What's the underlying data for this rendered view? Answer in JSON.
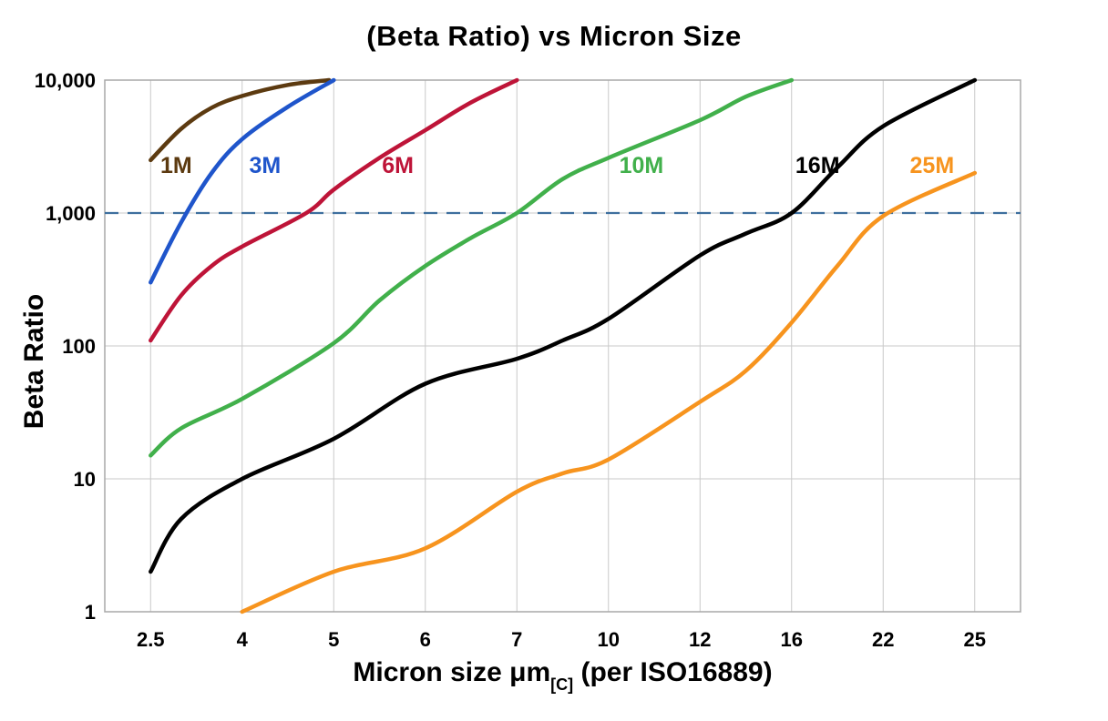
{
  "chart_data": {
    "type": "line",
    "title": "(Beta Ratio) vs Micron Size",
    "xlabel": "Micron size μm[C] (per ISO16889)",
    "xlabel_prefix": "Micron size μm",
    "xlabel_subscript": "[C]",
    "xlabel_suffix": " (per ISO16889)",
    "ylabel": "Beta Ratio",
    "x_scale": "category-linear",
    "y_scale": "log",
    "ylim": [
      1,
      10000
    ],
    "categories": [
      2.5,
      4,
      5,
      6,
      7,
      10,
      12,
      16,
      22,
      25
    ],
    "x_tick_labels": [
      "2.5",
      "4",
      "5",
      "6",
      "7",
      "10",
      "12",
      "16",
      "22",
      "25"
    ],
    "y_ticks": [
      1,
      10,
      100,
      1000,
      10000
    ],
    "y_tick_labels": [
      "1",
      "10",
      "100",
      "1,000",
      "10,000"
    ],
    "grid": true,
    "grid_color": "#c9c9c9",
    "border_color": "#a8a8a8",
    "reference_line": {
      "y": 1000,
      "style": "dashed",
      "color": "#3e6f9e"
    },
    "series": [
      {
        "name": "1M",
        "color": "#5c3a10",
        "label": {
          "x": 2.92,
          "y": 2000
        },
        "points": [
          [
            2.5,
            2500
          ],
          [
            3,
            4300
          ],
          [
            3.5,
            6200
          ],
          [
            4,
            7600
          ],
          [
            4.5,
            9200
          ],
          [
            4.95,
            10000
          ]
        ]
      },
      {
        "name": "3M",
        "color": "#1f55cb",
        "label": {
          "x": 4.25,
          "y": 2000
        },
        "points": [
          [
            2.5,
            300
          ],
          [
            3,
            850
          ],
          [
            3.5,
            2000
          ],
          [
            4,
            3600
          ],
          [
            4.5,
            6300
          ],
          [
            5,
            10000
          ]
        ]
      },
      {
        "name": "6M",
        "color": "#be1438",
        "label": {
          "x": 5.7,
          "y": 2000
        },
        "points": [
          [
            2.5,
            110
          ],
          [
            3,
            240
          ],
          [
            3.5,
            400
          ],
          [
            4,
            560
          ],
          [
            4.7,
            1000
          ],
          [
            5,
            1500
          ],
          [
            5.5,
            2600
          ],
          [
            6,
            4200
          ],
          [
            6.5,
            6800
          ],
          [
            7,
            10000
          ]
        ]
      },
      {
        "name": "10M",
        "color": "#41b04b",
        "label": {
          "x": 10.72,
          "y": 2000
        },
        "points": [
          [
            2.5,
            15
          ],
          [
            3,
            24
          ],
          [
            4,
            40
          ],
          [
            5,
            105
          ],
          [
            5.5,
            220
          ],
          [
            6,
            400
          ],
          [
            6.5,
            650
          ],
          [
            7,
            1000
          ],
          [
            8.5,
            1800
          ],
          [
            10,
            2600
          ],
          [
            12,
            5000
          ],
          [
            14,
            7500
          ],
          [
            16,
            10000
          ]
        ]
      },
      {
        "name": "16M",
        "color": "#000000",
        "label": {
          "x": 17.7,
          "y": 2000
        },
        "points": [
          [
            2.5,
            2
          ],
          [
            3,
            5
          ],
          [
            4,
            10
          ],
          [
            5,
            20
          ],
          [
            6,
            52
          ],
          [
            7,
            80
          ],
          [
            8.5,
            110
          ],
          [
            10,
            160
          ],
          [
            12,
            480
          ],
          [
            14,
            700
          ],
          [
            16,
            1000
          ],
          [
            19,
            2200
          ],
          [
            22,
            4500
          ],
          [
            25,
            10000
          ]
        ]
      },
      {
        "name": "25M",
        "color": "#f7941e",
        "label": {
          "x": 23.6,
          "y": 2000
        },
        "points": [
          [
            4,
            1
          ],
          [
            5,
            2
          ],
          [
            6,
            3
          ],
          [
            7,
            8
          ],
          [
            8.5,
            11
          ],
          [
            10,
            14
          ],
          [
            12,
            38
          ],
          [
            14,
            65
          ],
          [
            16,
            150
          ],
          [
            19,
            400
          ],
          [
            22,
            950
          ],
          [
            25,
            2000
          ]
        ]
      }
    ]
  }
}
